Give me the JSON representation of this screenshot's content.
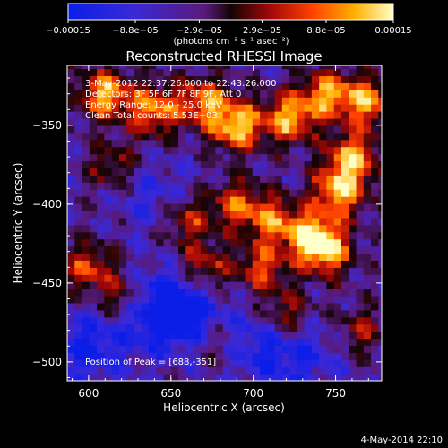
{
  "chart_data": {
    "type": "heatmap",
    "title": "Reconstructed RHESSI Image",
    "xlabel": "Heliocentric X (arcsec)",
    "ylabel": "Heliocentric Y (arcsec)",
    "xlim": [
      587,
      778
    ],
    "ylim": [
      -512,
      -312
    ],
    "xticks": [
      600,
      650,
      700,
      750
    ],
    "xtick_labels": [
      "600",
      "650",
      "700",
      "750"
    ],
    "yticks": [
      -350,
      -400,
      -450,
      -500
    ],
    "ytick_labels": [
      "−350",
      "−400",
      "−450",
      "−500"
    ],
    "colorbar": {
      "range": [
        -0.00015,
        0.00015
      ],
      "ticks": [
        -0.00015,
        -8.8e-05,
        -2.9e-05,
        2.9e-05,
        8.8e-05,
        0.00015
      ],
      "tick_labels": [
        "−0.00015",
        "−8.8e−05",
        "−2.9e−05",
        "2.9e−05",
        "8.8e−05",
        "0.00015"
      ],
      "unit_label": "(photons cm⁻² s⁻¹ asec⁻²)"
    },
    "annotations": {
      "time": "3-May-2012 22:37:26.000 to 22:43:26.000",
      "detectors": "Detectors: 3F 5F 6F 7F 8F 9F, Att 0",
      "energy": "Energy Range: 12.0 - 25.0 keV",
      "clean": "Clean    Total counts: 5.53E+03",
      "peak": "Position of Peak = [688,-351]"
    },
    "footer_date": "4-May-2014 22:10",
    "bright_sources": [
      {
        "x": 610,
        "y": -330,
        "v": 0.95
      },
      {
        "x": 640,
        "y": -340,
        "v": 0.85
      },
      {
        "x": 690,
        "y": -350,
        "v": 1.0
      },
      {
        "x": 670,
        "y": -335,
        "v": 0.8
      },
      {
        "x": 722,
        "y": -345,
        "v": 0.9
      },
      {
        "x": 745,
        "y": -330,
        "v": 0.85
      },
      {
        "x": 770,
        "y": -335,
        "v": 0.85
      },
      {
        "x": 760,
        "y": -370,
        "v": 0.9
      },
      {
        "x": 752,
        "y": -392,
        "v": 0.95
      },
      {
        "x": 735,
        "y": -420,
        "v": 0.9
      },
      {
        "x": 745,
        "y": -430,
        "v": 0.8
      },
      {
        "x": 712,
        "y": -410,
        "v": 0.7
      },
      {
        "x": 690,
        "y": -400,
        "v": 0.65
      },
      {
        "x": 660,
        "y": -410,
        "v": 0.55
      },
      {
        "x": 670,
        "y": -440,
        "v": 0.6
      },
      {
        "x": 705,
        "y": -440,
        "v": 0.65
      },
      {
        "x": 720,
        "y": -470,
        "v": 0.55
      },
      {
        "x": 600,
        "y": -440,
        "v": 0.65
      },
      {
        "x": 620,
        "y": -460,
        "v": 0.5
      },
      {
        "x": 615,
        "y": -375,
        "v": 0.45
      },
      {
        "x": 765,
        "y": -480,
        "v": 0.45
      },
      {
        "x": 680,
        "y": -490,
        "v": 0.3
      }
    ],
    "dim_regions": [
      {
        "x": 600,
        "y": -490,
        "v": -0.6
      },
      {
        "x": 640,
        "y": -470,
        "v": -0.55
      },
      {
        "x": 655,
        "y": -465,
        "v": -0.8
      },
      {
        "x": 700,
        "y": -490,
        "v": -0.5
      },
      {
        "x": 640,
        "y": -395,
        "v": -0.35
      },
      {
        "x": 730,
        "y": -495,
        "v": -0.45
      }
    ]
  }
}
